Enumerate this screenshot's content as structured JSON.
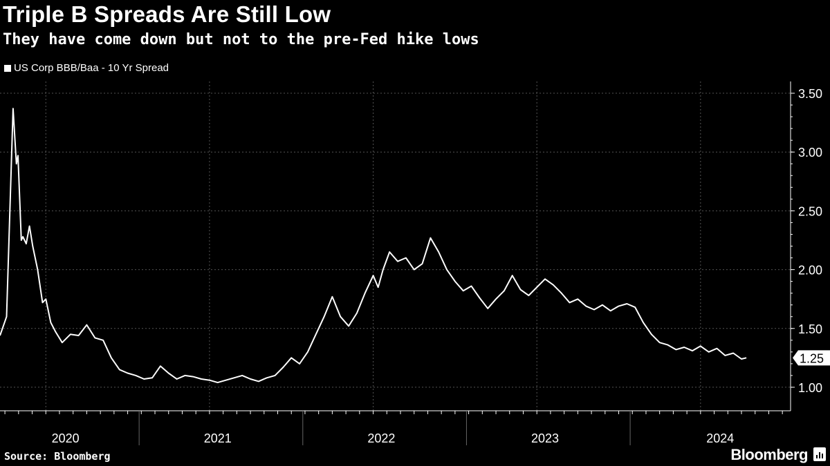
{
  "header": {
    "title": "Triple B Spreads Are Still Low",
    "subtitle": "They have come down but not to the pre-Fed hike lows"
  },
  "legend": {
    "label": "US Corp BBB/Baa - 10 Yr Spread"
  },
  "footer": {
    "source": "Source: Bloomberg",
    "brand": "Bloomberg"
  },
  "chart_data": {
    "type": "line",
    "title": "Triple B Spreads Are Still Low",
    "subtitle": "They have come down but not to the pre-Fed hike lows",
    "series": [
      {
        "name": "US Corp BBB/Baa - 10 Yr Spread",
        "color": "#ffffff",
        "x": [
          2019.72,
          2019.76,
          2019.8,
          2019.82,
          2019.83,
          2019.85,
          2019.86,
          2019.88,
          2019.9,
          2019.92,
          2019.95,
          2019.98,
          2020.0,
          2020.03,
          2020.06,
          2020.1,
          2020.15,
          2020.2,
          2020.25,
          2020.3,
          2020.35,
          2020.4,
          2020.45,
          2020.5,
          2020.55,
          2020.6,
          2020.65,
          2020.7,
          2020.75,
          2020.8,
          2020.85,
          2020.9,
          2020.95,
          2021.0,
          2021.05,
          2021.1,
          2021.15,
          2021.2,
          2021.25,
          2021.3,
          2021.35,
          2021.4,
          2021.45,
          2021.5,
          2021.55,
          2021.6,
          2021.65,
          2021.7,
          2021.75,
          2021.8,
          2021.85,
          2021.9,
          2021.95,
          2022.0,
          2022.03,
          2022.06,
          2022.1,
          2022.15,
          2022.2,
          2022.25,
          2022.3,
          2022.35,
          2022.4,
          2022.45,
          2022.5,
          2022.55,
          2022.6,
          2022.65,
          2022.7,
          2022.75,
          2022.8,
          2022.85,
          2022.9,
          2022.95,
          2023.0,
          2023.05,
          2023.1,
          2023.15,
          2023.2,
          2023.25,
          2023.3,
          2023.35,
          2023.4,
          2023.45,
          2023.5,
          2023.55,
          2023.6,
          2023.65,
          2023.7,
          2023.75,
          2023.8,
          2023.85,
          2023.9,
          2023.95,
          2024.0,
          2024.05,
          2024.1,
          2024.15,
          2024.2,
          2024.25,
          2024.28
        ],
        "values": [
          1.44,
          1.6,
          3.37,
          2.9,
          2.97,
          2.25,
          2.28,
          2.22,
          2.37,
          2.2,
          2.0,
          1.72,
          1.75,
          1.55,
          1.47,
          1.38,
          1.45,
          1.44,
          1.53,
          1.42,
          1.4,
          1.25,
          1.15,
          1.12,
          1.1,
          1.07,
          1.08,
          1.18,
          1.12,
          1.07,
          1.1,
          1.09,
          1.07,
          1.06,
          1.04,
          1.06,
          1.08,
          1.1,
          1.07,
          1.05,
          1.08,
          1.1,
          1.17,
          1.25,
          1.2,
          1.3,
          1.45,
          1.6,
          1.77,
          1.6,
          1.52,
          1.63,
          1.8,
          1.95,
          1.85,
          2.0,
          2.15,
          2.07,
          2.1,
          2.0,
          2.05,
          2.27,
          2.15,
          2.0,
          1.9,
          1.82,
          1.86,
          1.76,
          1.67,
          1.75,
          1.82,
          1.95,
          1.83,
          1.78,
          1.85,
          1.92,
          1.87,
          1.8,
          1.72,
          1.75,
          1.69,
          1.66,
          1.7,
          1.65,
          1.69,
          1.71,
          1.68,
          1.55,
          1.45,
          1.38,
          1.36,
          1.32,
          1.34,
          1.31,
          1.35,
          1.3,
          1.33,
          1.27,
          1.29,
          1.24,
          1.25
        ]
      }
    ],
    "xlim": [
      2019.72,
      2024.55
    ],
    "ylim": [
      0.8,
      3.6
    ],
    "x_tick_labels": [
      {
        "label": "2020",
        "at": 2020.12
      },
      {
        "label": "2021",
        "at": 2021.05
      },
      {
        "label": "2022",
        "at": 2022.05
      },
      {
        "label": "2023",
        "at": 2023.05
      },
      {
        "label": "2024",
        "at": 2024.12
      }
    ],
    "x_dividers": [
      2020.57,
      2021.57,
      2022.57,
      2023.57
    ],
    "x_gridlines": [
      2020.0,
      2021.0,
      2022.0,
      2023.0,
      2024.0
    ],
    "y_ticks": [
      {
        "value": 3.5,
        "label": "3.50"
      },
      {
        "value": 3.0,
        "label": "3.00"
      },
      {
        "value": 2.5,
        "label": "2.50"
      },
      {
        "value": 2.0,
        "label": "2.00"
      },
      {
        "value": 1.5,
        "label": "1.50"
      },
      {
        "value": 1.0,
        "label": "1.00"
      }
    ],
    "last_value_label": "1.25",
    "last_value": 1.25,
    "grid": true,
    "xlabel": "",
    "ylabel": "",
    "legend_position": "top-left"
  }
}
